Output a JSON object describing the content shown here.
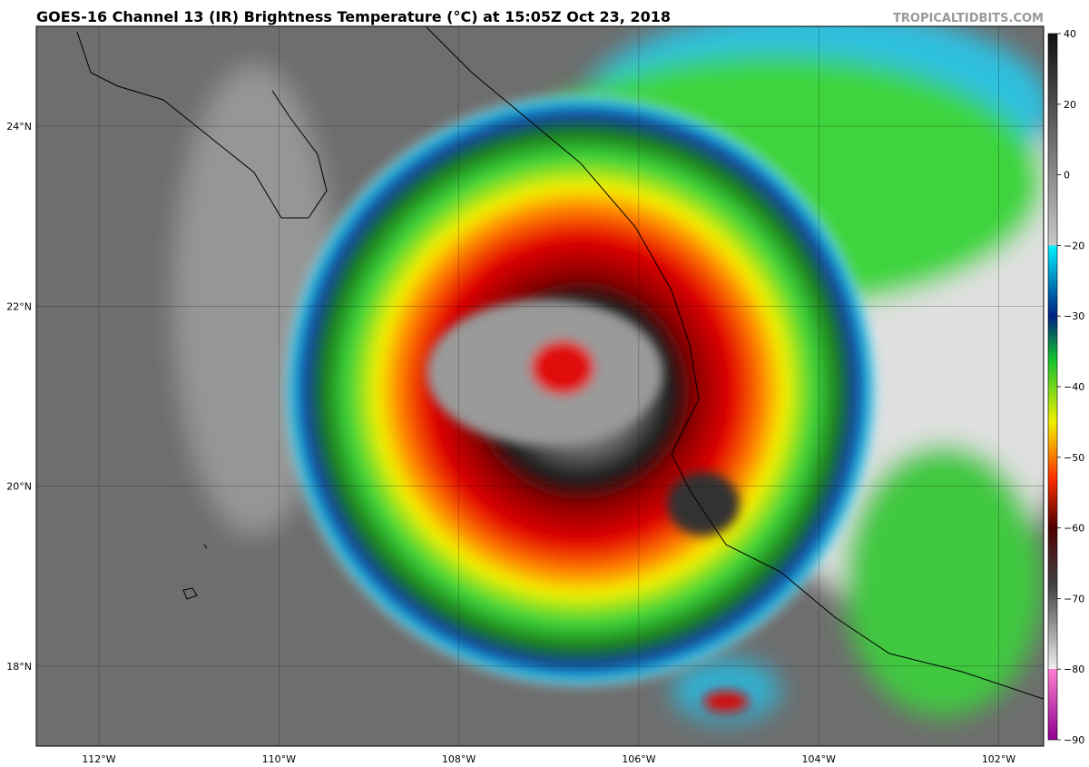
{
  "header": {
    "title": "GOES-16 Channel 13 (IR) Brightness Temperature (°C) at 15:05Z Oct 23, 2018",
    "watermark": "TROPICALTIDBITS.COM"
  },
  "map": {
    "lat_labels": [
      "24°N",
      "22°N",
      "20°N",
      "18°N"
    ],
    "lon_labels": [
      "112°W",
      "110°W",
      "108°W",
      "106°W",
      "104°W",
      "102°W"
    ]
  },
  "colorbar": {
    "tick_labels": [
      "40",
      "20",
      "0",
      "−20",
      "−30",
      "−40",
      "−50",
      "−60",
      "−70",
      "−80",
      "−90"
    ]
  }
}
